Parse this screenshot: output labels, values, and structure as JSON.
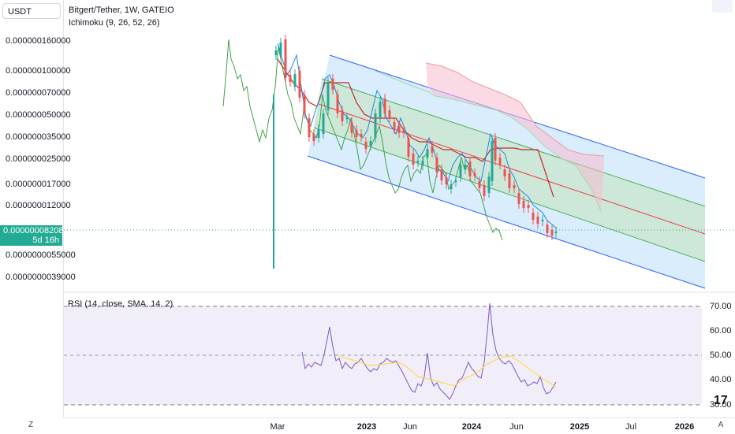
{
  "header": {
    "currency": "USDT",
    "title": "Bitgert/Tether, 1W, GATEIO",
    "indicator": "Ichimoku (9, 26, 52, 26)"
  },
  "price_axis": {
    "labels": [
      "0.000000160000",
      "0.000000100000",
      "0.000000070000",
      "0.000000050000",
      "0.000000035000",
      "0.000000025000",
      "0.000000017000",
      "0.000000012000",
      "0.0000000055000",
      "0.0000000039000"
    ],
    "current_price": "0.00000008208",
    "countdown": "5d 16h"
  },
  "rsi": {
    "title": "RSI (14, close, SMA, 14, 2)",
    "axis_labels": [
      "70.00",
      "60.00",
      "50.00",
      "40.00",
      "30.00"
    ]
  },
  "time_axis": {
    "labels": [
      "Mar",
      "2023",
      "Jun",
      "2024",
      "Jun",
      "2025",
      "Jul",
      "2026"
    ],
    "bold": [
      "2023",
      "2024",
      "2025",
      "2026"
    ]
  },
  "controls": {
    "z_label": "Z",
    "a_label": "A",
    "logo": "17"
  },
  "colors": {
    "up": "#26a69a",
    "down": "#ef5350",
    "channel_blue": "#2962ff",
    "channel_green": "#4caf50",
    "median_red": "#f23645",
    "rsi_line": "#7e57c2",
    "rsi_ma": "#fdd835",
    "rsi_bg": "#ede7f6",
    "price_tag": "#22ab94"
  }
}
